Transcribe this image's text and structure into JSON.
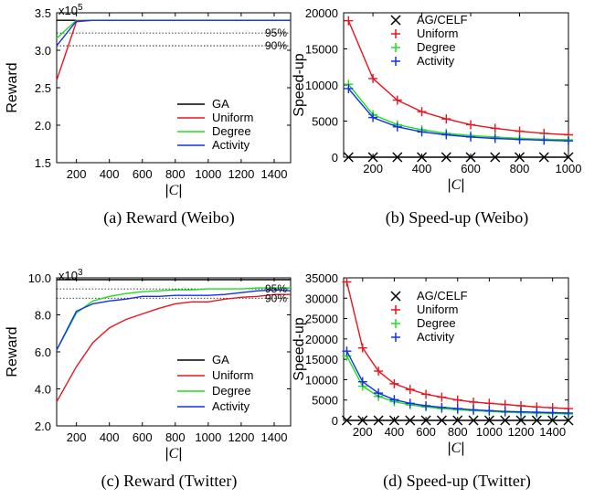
{
  "chart_data": [
    {
      "type": "line",
      "caption": "(a) Reward (Weibo)",
      "xlabel": "|C|",
      "ylabel": "Reward",
      "y_multiplier": "x10^5",
      "xlim": [
        80,
        1500
      ],
      "ylim": [
        1.5,
        3.5
      ],
      "x_ticks": [
        200,
        400,
        600,
        800,
        1000,
        1200,
        1400
      ],
      "y_ticks": [
        1.5,
        2.0,
        2.5,
        3.0,
        3.5
      ],
      "y_tick_labels": [
        "1.5",
        "2.0",
        "2.5",
        "3.0",
        "3.5"
      ],
      "reference_lines": [
        {
          "label": "95%",
          "y": 3.23
        },
        {
          "label": "90%",
          "y": 3.06
        }
      ],
      "legend_position": "bottom-right",
      "series": [
        {
          "name": "GA",
          "color": "#000000",
          "marker": "none",
          "x": [
            80,
            1500
          ],
          "y": [
            3.4,
            3.4
          ]
        },
        {
          "name": "Uniform",
          "color": "#e8141e",
          "marker": "none",
          "x": [
            80,
            200,
            300,
            400,
            600,
            800,
            1000,
            1200,
            1400,
            1500
          ],
          "y": [
            2.6,
            3.38,
            3.4,
            3.4,
            3.4,
            3.4,
            3.4,
            3.4,
            3.4,
            3.4
          ]
        },
        {
          "name": "Degree",
          "color": "#22dd22",
          "marker": "none",
          "x": [
            80,
            200,
            300,
            400,
            600,
            800,
            1000,
            1200,
            1400,
            1500
          ],
          "y": [
            3.16,
            3.4,
            3.4,
            3.4,
            3.4,
            3.4,
            3.4,
            3.4,
            3.4,
            3.4
          ]
        },
        {
          "name": "Activity",
          "color": "#1430e6",
          "marker": "none",
          "x": [
            80,
            200,
            300,
            400,
            600,
            800,
            1000,
            1200,
            1400,
            1500
          ],
          "y": [
            3.06,
            3.39,
            3.4,
            3.4,
            3.4,
            3.4,
            3.4,
            3.4,
            3.4,
            3.4
          ]
        }
      ]
    },
    {
      "type": "line",
      "caption": "(b) Speed-up (Weibo)",
      "xlabel": "|C|",
      "ylabel": "Speed-up",
      "xlim": [
        80,
        1000
      ],
      "ylim": [
        0,
        20000
      ],
      "x_ticks": [
        200,
        400,
        600,
        800,
        1000
      ],
      "y_ticks": [
        0,
        5000,
        10000,
        15000,
        20000
      ],
      "y_tick_labels": [
        "0",
        "5000",
        "10000",
        "15000",
        "20000"
      ],
      "legend_position": "top-right",
      "series": [
        {
          "name": "AG/CELF",
          "color": "#000000",
          "marker": "x",
          "x": [
            100,
            200,
            300,
            400,
            500,
            600,
            700,
            800,
            900,
            1000
          ],
          "y": [
            0,
            0,
            0,
            0,
            0,
            0,
            0,
            0,
            0,
            0
          ]
        },
        {
          "name": "Uniform",
          "color": "#e8141e",
          "marker": "+",
          "x": [
            100,
            200,
            300,
            400,
            500,
            600,
            700,
            800,
            900,
            1000
          ],
          "y": [
            18900,
            10900,
            7900,
            6300,
            5300,
            4500,
            4000,
            3600,
            3300,
            3100
          ]
        },
        {
          "name": "Degree",
          "color": "#22dd22",
          "marker": "+",
          "x": [
            100,
            200,
            300,
            400,
            500,
            600,
            700,
            800,
            900,
            1000
          ],
          "y": [
            10100,
            5900,
            4500,
            3800,
            3300,
            3000,
            2800,
            2600,
            2500,
            2400
          ]
        },
        {
          "name": "Activity",
          "color": "#1430e6",
          "marker": "+",
          "x": [
            100,
            200,
            300,
            400,
            500,
            600,
            700,
            800,
            900,
            1000
          ],
          "y": [
            9500,
            5500,
            4200,
            3500,
            3100,
            2800,
            2600,
            2450,
            2350,
            2250
          ]
        }
      ]
    },
    {
      "type": "line",
      "caption": "(c) Reward (Twitter)",
      "xlabel": "|C|",
      "ylabel": "Reward",
      "y_multiplier": "x10^3",
      "xlim": [
        80,
        1500
      ],
      "ylim": [
        2.0,
        10.0
      ],
      "x_ticks": [
        200,
        400,
        600,
        800,
        1000,
        1200,
        1400
      ],
      "y_ticks": [
        2.0,
        4.0,
        6.0,
        8.0,
        10.0
      ],
      "y_tick_labels": [
        "2.0",
        "4.0",
        "6.0",
        "8.0",
        "10.0"
      ],
      "reference_lines": [
        {
          "label": "95%",
          "y": 9.4
        },
        {
          "label": "90%",
          "y": 8.9
        }
      ],
      "legend_position": "bottom-right",
      "series": [
        {
          "name": "GA",
          "color": "#000000",
          "marker": "none",
          "x": [
            80,
            1500
          ],
          "y": [
            9.9,
            9.9
          ]
        },
        {
          "name": "Uniform",
          "color": "#e8141e",
          "marker": "none",
          "x": [
            80,
            200,
            300,
            400,
            500,
            600,
            700,
            800,
            900,
            1000,
            1100,
            1200,
            1300,
            1400,
            1500
          ],
          "y": [
            3.3,
            5.2,
            6.5,
            7.3,
            7.75,
            8.05,
            8.35,
            8.6,
            8.7,
            8.7,
            8.85,
            8.95,
            9.0,
            9.1,
            9.1
          ]
        },
        {
          "name": "Degree",
          "color": "#22dd22",
          "marker": "none",
          "x": [
            80,
            200,
            300,
            400,
            500,
            600,
            700,
            800,
            900,
            1000,
            1100,
            1200,
            1300,
            1400,
            1500
          ],
          "y": [
            6.1,
            8.1,
            8.75,
            9.0,
            9.15,
            9.25,
            9.3,
            9.35,
            9.35,
            9.4,
            9.4,
            9.4,
            9.45,
            9.45,
            9.45
          ]
        },
        {
          "name": "Activity",
          "color": "#1430e6",
          "marker": "none",
          "x": [
            80,
            200,
            300,
            400,
            500,
            600,
            700,
            800,
            900,
            1000,
            1100,
            1200,
            1300,
            1400,
            1500
          ],
          "y": [
            6.1,
            8.2,
            8.6,
            8.75,
            8.85,
            9.0,
            9.0,
            9.05,
            9.05,
            9.05,
            9.1,
            9.2,
            9.3,
            9.35,
            9.3
          ]
        }
      ]
    },
    {
      "type": "line",
      "caption": "(d) Speed-up (Twitter)",
      "xlabel": "|C|",
      "ylabel": "Speed-up",
      "xlim": [
        80,
        1500
      ],
      "ylim": [
        0,
        35000
      ],
      "x_ticks": [
        200,
        400,
        600,
        800,
        1000,
        1200,
        1400
      ],
      "x_tick_labels": [
        "200",
        "400",
        "600",
        "800",
        "1000",
        "1200",
        "1400"
      ],
      "y_ticks": [
        0,
        5000,
        10000,
        15000,
        20000,
        25000,
        30000,
        35000
      ],
      "y_tick_labels": [
        "0",
        "5000",
        "10000",
        "15000",
        "20000",
        "25000",
        "30000",
        "35000"
      ],
      "legend_position": "top-right",
      "series": [
        {
          "name": "AG/CELF",
          "color": "#000000",
          "marker": "x",
          "x": [
            100,
            200,
            300,
            400,
            500,
            600,
            700,
            800,
            900,
            1000,
            1100,
            1200,
            1300,
            1400,
            1500
          ],
          "y": [
            0,
            0,
            0,
            0,
            0,
            0,
            0,
            0,
            0,
            0,
            0,
            0,
            0,
            0,
            0
          ]
        },
        {
          "name": "Uniform",
          "color": "#e8141e",
          "marker": "+",
          "x": [
            100,
            200,
            300,
            400,
            500,
            600,
            700,
            800,
            900,
            1000,
            1100,
            1200,
            1300,
            1400,
            1500
          ],
          "y": [
            34000,
            17800,
            12100,
            9000,
            7600,
            6400,
            5700,
            5000,
            4500,
            4200,
            3900,
            3600,
            3300,
            3100,
            2900
          ]
        },
        {
          "name": "Degree",
          "color": "#22dd22",
          "marker": "+",
          "x": [
            100,
            200,
            300,
            400,
            500,
            600,
            700,
            800,
            900,
            1000,
            1100,
            1200,
            1300,
            1400,
            1500
          ],
          "y": [
            15800,
            8400,
            5900,
            4600,
            3800,
            3300,
            2900,
            2600,
            2400,
            2200,
            2000,
            1900,
            1800,
            1700,
            1600
          ]
        },
        {
          "name": "Activity",
          "color": "#1430e6",
          "marker": "+",
          "x": [
            100,
            200,
            300,
            400,
            500,
            600,
            700,
            800,
            900,
            1000,
            1100,
            1200,
            1300,
            1400,
            1500
          ],
          "y": [
            17000,
            9500,
            6700,
            5100,
            4200,
            3600,
            3200,
            2900,
            2600,
            2400,
            2200,
            2100,
            2000,
            1900,
            1800
          ]
        }
      ]
    }
  ]
}
